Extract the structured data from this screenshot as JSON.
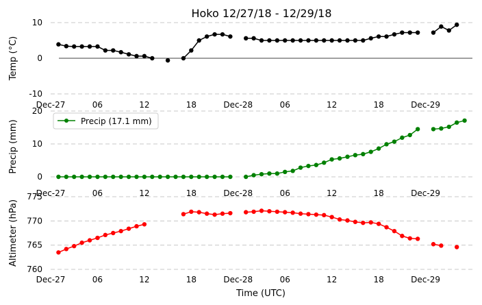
{
  "title": "Hoko 12/27/18 - 12/29/18",
  "x_axis": {
    "label": "Time (UTC)",
    "tick_labels": [
      "Dec-27",
      "06",
      "12",
      "18",
      "Dec-28",
      "06",
      "12",
      "18",
      "Dec-29"
    ],
    "tick_hours": [
      0,
      6,
      12,
      18,
      24,
      30,
      36,
      42,
      48
    ]
  },
  "colors": {
    "temp": "#000000",
    "precip": "#008000",
    "altimeter": "#ff0000",
    "grid": "#c8c8c8"
  },
  "chart_data": [
    {
      "type": "line",
      "id": "temp",
      "ylabel": "Temp (°C)",
      "ylim": [
        -10,
        10
      ],
      "yticks": [
        -10,
        0,
        10
      ],
      "zero_line": true,
      "grid": "horizontal-dashed",
      "x_hours": [
        1,
        2,
        3,
        4,
        5,
        6,
        7,
        8,
        9,
        10,
        11,
        12,
        13,
        15,
        17,
        18,
        19,
        20,
        21,
        22,
        23,
        25,
        26,
        27,
        28,
        29,
        30,
        31,
        32,
        33,
        34,
        35,
        36,
        37,
        38,
        39,
        40,
        41,
        42,
        43,
        44,
        45,
        46,
        47,
        49,
        50,
        51,
        52
      ],
      "values": [
        3.9,
        3.4,
        3.3,
        3.3,
        3.3,
        3.3,
        2.2,
        2.2,
        1.7,
        1.1,
        0.6,
        0.6,
        0,
        -0.6,
        0,
        2.2,
        5.0,
        6.1,
        6.7,
        6.7,
        6.1,
        5.6,
        5.6,
        5.0,
        5.0,
        5.0,
        5.0,
        5.0,
        5.0,
        5.0,
        5.0,
        5.0,
        5.0,
        5.0,
        5.0,
        5.0,
        5.0,
        5.6,
        6.1,
        6.1,
        6.7,
        7.2,
        7.2,
        7.2,
        7.2,
        8.9,
        7.8,
        9.4
      ]
    },
    {
      "type": "line",
      "id": "precip",
      "ylabel": "Precip (mm)",
      "ylim": [
        0,
        20
      ],
      "yticks": [
        0,
        10,
        20
      ],
      "grid": "horizontal-dashed",
      "legend": {
        "label": "Precip (17.1 mm)",
        "position": "upper-left"
      },
      "x_hours": [
        1,
        2,
        3,
        4,
        5,
        6,
        7,
        8,
        9,
        10,
        11,
        12,
        13,
        14,
        15,
        16,
        17,
        18,
        19,
        20,
        21,
        22,
        23,
        25,
        26,
        27,
        28,
        29,
        30,
        31,
        32,
        33,
        34,
        35,
        36,
        37,
        38,
        39,
        40,
        41,
        42,
        43,
        44,
        45,
        46,
        47,
        49,
        50,
        51,
        52,
        53
      ],
      "values": [
        0,
        0,
        0,
        0,
        0,
        0,
        0,
        0,
        0,
        0,
        0,
        0,
        0,
        0,
        0,
        0,
        0,
        0,
        0,
        0,
        0,
        0,
        0,
        0,
        0.5,
        0.8,
        1.0,
        1.0,
        1.5,
        1.8,
        2.8,
        3.3,
        3.6,
        4.3,
        5.3,
        5.6,
        6.1,
        6.6,
        6.9,
        7.6,
        8.6,
        9.9,
        10.7,
        11.9,
        12.7,
        14.5,
        14.5,
        14.7,
        15.2,
        16.5,
        17.1
      ]
    },
    {
      "type": "line",
      "id": "altimeter",
      "ylabel": "Altimeter (hPa)",
      "xlabel": "Time (UTC)",
      "ylim": [
        760,
        775
      ],
      "yticks": [
        760,
        765,
        770,
        775
      ],
      "grid": "horizontal-dashed",
      "x_hours": [
        1,
        2,
        3,
        4,
        5,
        6,
        7,
        8,
        9,
        10,
        11,
        12,
        17,
        18,
        19,
        20,
        21,
        22,
        23,
        25,
        26,
        27,
        28,
        29,
        30,
        31,
        32,
        33,
        34,
        35,
        36,
        37,
        38,
        39,
        40,
        41,
        42,
        43,
        44,
        45,
        46,
        47,
        49,
        50,
        52
      ],
      "values": [
        763.5,
        764.2,
        764.8,
        765.5,
        766.0,
        766.5,
        767.1,
        767.5,
        767.9,
        768.4,
        768.9,
        769.3,
        771.4,
        771.9,
        771.8,
        771.5,
        771.3,
        771.5,
        771.6,
        771.8,
        771.9,
        772.1,
        772.0,
        771.9,
        771.8,
        771.7,
        771.5,
        771.4,
        771.3,
        771.2,
        770.8,
        770.3,
        770.1,
        769.8,
        769.6,
        769.7,
        769.4,
        768.7,
        767.9,
        766.9,
        766.4,
        766.3,
        765.2,
        764.9,
        764.6
      ]
    }
  ]
}
